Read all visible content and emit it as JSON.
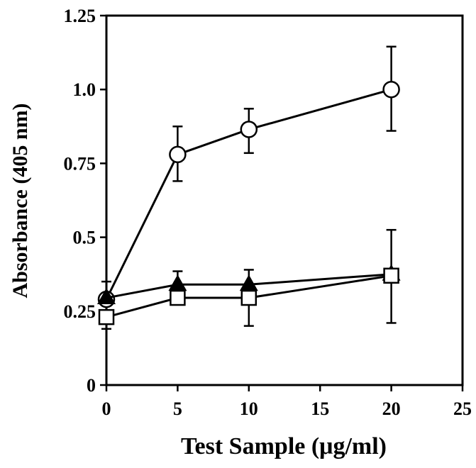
{
  "chart_data": {
    "type": "line",
    "title": "",
    "xlabel": "Test Sample (μg/ml)",
    "ylabel": "Absorbance (405 nm)",
    "xlim": [
      0,
      25
    ],
    "ylim": [
      0,
      1.25
    ],
    "xticks": [
      0,
      5,
      10,
      15,
      20,
      25
    ],
    "xtick_labels": [
      "0",
      "5",
      "10",
      "15",
      "20",
      "25"
    ],
    "yticks": [
      0,
      0.25,
      0.5,
      0.75,
      1.0,
      1.25
    ],
    "ytick_labels": [
      "0",
      "0.25",
      "0.5",
      "0.75",
      "1.0",
      "1.25"
    ],
    "grid": false,
    "series": [
      {
        "marker": "open-circle",
        "x": [
          0,
          5,
          10,
          20
        ],
        "y": [
          0.29,
          0.78,
          0.865,
          1.0
        ],
        "err_low": [
          0.29,
          0.69,
          0.785,
          0.86
        ],
        "err_high": [
          0.29,
          0.875,
          0.935,
          1.145
        ]
      },
      {
        "marker": "filled-triangle",
        "x": [
          0,
          5,
          10,
          20
        ],
        "y": [
          0.295,
          0.34,
          0.34,
          0.375
        ],
        "err_low": [
          0.295,
          0.34,
          0.34,
          0.375
        ],
        "err_high": [
          0.35,
          0.385,
          0.39,
          0.375
        ]
      },
      {
        "marker": "open-square",
        "x": [
          0,
          5,
          10,
          20
        ],
        "y": [
          0.23,
          0.295,
          0.295,
          0.37
        ],
        "err_low": [
          0.19,
          0.295,
          0.2,
          0.21
        ],
        "err_high": [
          0.23,
          0.295,
          0.295,
          0.525
        ]
      }
    ]
  }
}
